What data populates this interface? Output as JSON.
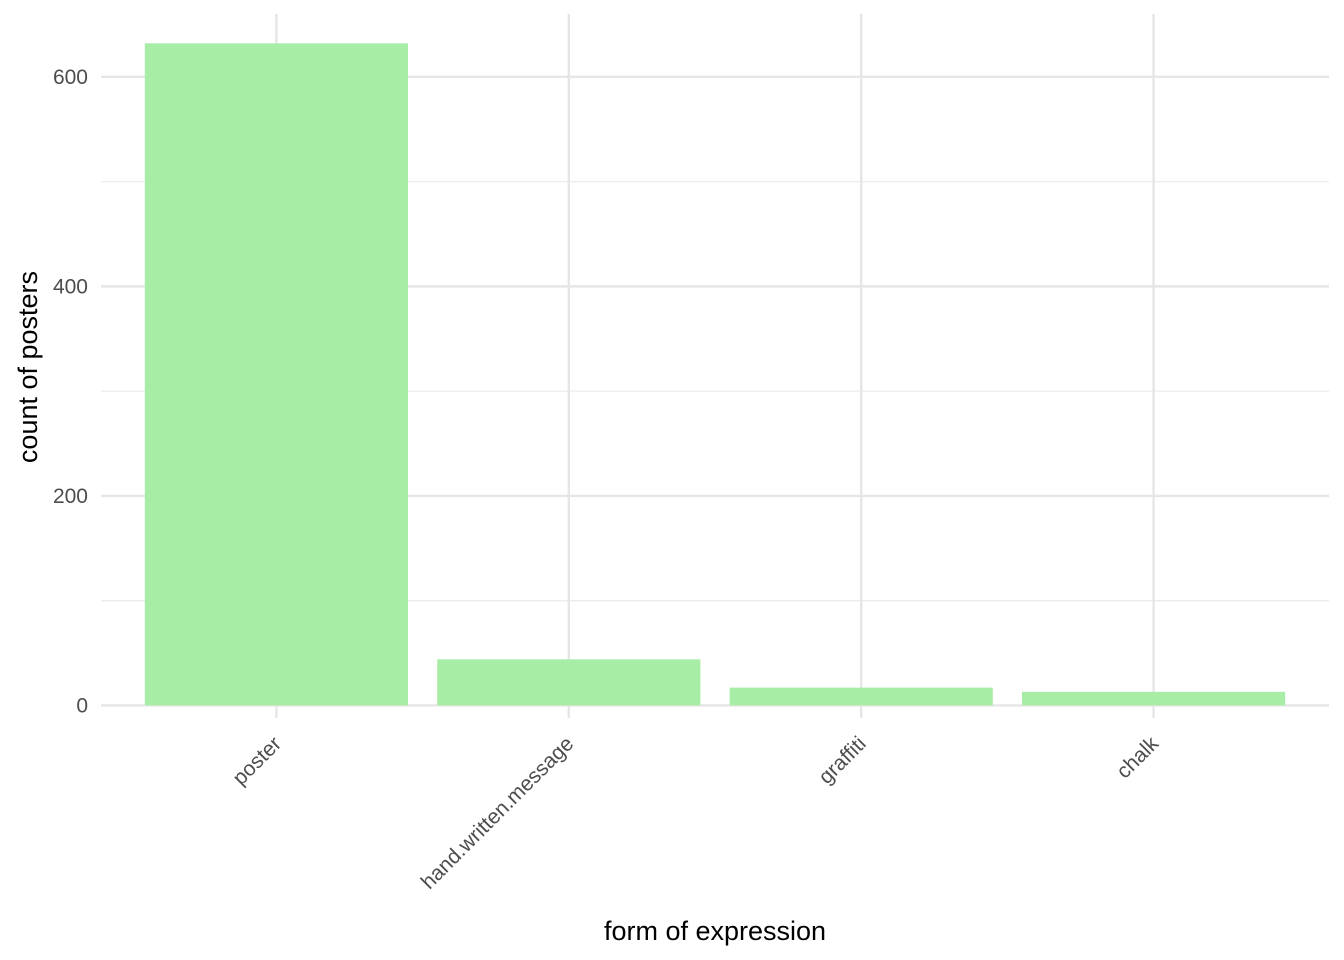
{
  "chart_data": {
    "type": "bar",
    "xlabel": "form of expression",
    "ylabel": "count of posters",
    "categories": [
      "poster",
      "hand.written.message",
      "graffiti",
      "chalk"
    ],
    "values": [
      632,
      44,
      17,
      13
    ],
    "ylim": [
      -12,
      660
    ],
    "y_ticks": [
      0,
      200,
      400,
      600
    ],
    "y_minor_ticks": [
      100,
      300,
      500
    ],
    "x_tick_label_rotation": -45,
    "grid": true,
    "legend": "none",
    "bar_color": "#a8eda5",
    "background": "#ffffff"
  }
}
